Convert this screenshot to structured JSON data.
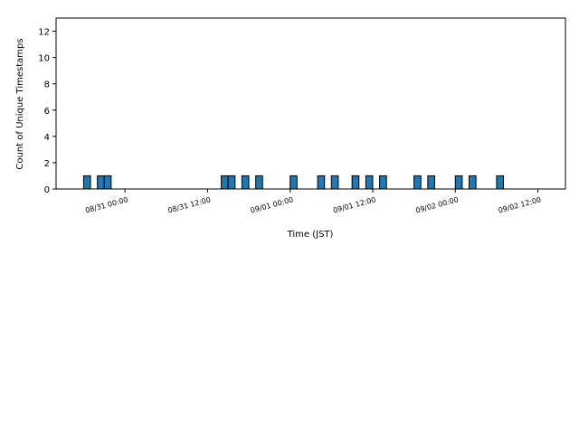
{
  "chart_data": {
    "type": "histogram",
    "xlabel": "Time (JST)",
    "ylabel": "Count of Unique Timestamps",
    "bins": [
      "08/30 18:00",
      "08/30 19:00",
      "08/30 20:00",
      "08/30 21:00",
      "08/30 22:00",
      "08/30 23:00",
      "08/31 00:00",
      "08/31 01:00",
      "08/31 02:00",
      "08/31 03:00",
      "08/31 04:00",
      "08/31 05:00",
      "08/31 06:00",
      "08/31 07:00",
      "08/31 08:00",
      "08/31 09:00",
      "08/31 10:00",
      "08/31 11:00",
      "08/31 12:00",
      "08/31 13:00",
      "08/31 14:00",
      "08/31 15:00",
      "08/31 16:00",
      "08/31 17:00",
      "08/31 18:00",
      "08/31 19:00",
      "08/31 20:00",
      "08/31 21:00",
      "08/31 22:00",
      "08/31 23:00",
      "09/01 00:00",
      "09/01 01:00",
      "09/01 02:00",
      "09/01 03:00",
      "09/01 04:00",
      "09/01 05:00",
      "09/01 06:00",
      "09/01 07:00",
      "09/01 08:00",
      "09/01 09:00",
      "09/01 10:00",
      "09/01 11:00",
      "09/01 12:00",
      "09/01 13:00",
      "09/01 14:00",
      "09/01 15:00",
      "09/01 16:00",
      "09/01 17:00",
      "09/01 18:00",
      "09/01 19:00",
      "09/01 20:00",
      "09/01 21:00",
      "09/01 22:00",
      "09/01 23:00",
      "09/02 00:00",
      "09/02 01:00",
      "09/02 02:00",
      "09/02 03:00",
      "09/02 04:00",
      "09/02 05:00",
      "09/02 06:00",
      "09/02 07:00",
      "09/02 08:00",
      "09/02 09:00",
      "09/02 10:00",
      "09/02 11:00",
      "09/02 12:00",
      "09/02 13:00",
      "09/02 14:00"
    ],
    "values": [
      1,
      0,
      1,
      1,
      0,
      0,
      0,
      0,
      0,
      0,
      0,
      0,
      0,
      0,
      0,
      0,
      0,
      0,
      0,
      0,
      1,
      1,
      0,
      1,
      0,
      1,
      0,
      0,
      0,
      0,
      1,
      0,
      0,
      0,
      1,
      0,
      1,
      0,
      0,
      1,
      0,
      1,
      0,
      1,
      0,
      0,
      0,
      0,
      1,
      0,
      1,
      0,
      0,
      0,
      1,
      0,
      1,
      0,
      0,
      0,
      1,
      0,
      0,
      0,
      0,
      0,
      0,
      0
    ],
    "color": "#1f77b4",
    "edgecolor": "#000000",
    "xlim": [
      "08/30 14:00",
      "09/02 16:00"
    ],
    "xticks": [
      "08/31 00:00",
      "08/31 12:00",
      "09/01 00:00",
      "09/01 12:00",
      "09/02 00:00",
      "09/02 12:00"
    ],
    "ylim": [
      0,
      13
    ],
    "yticks": [
      0,
      2,
      4,
      6,
      8,
      10,
      12
    ],
    "grid": false
  }
}
